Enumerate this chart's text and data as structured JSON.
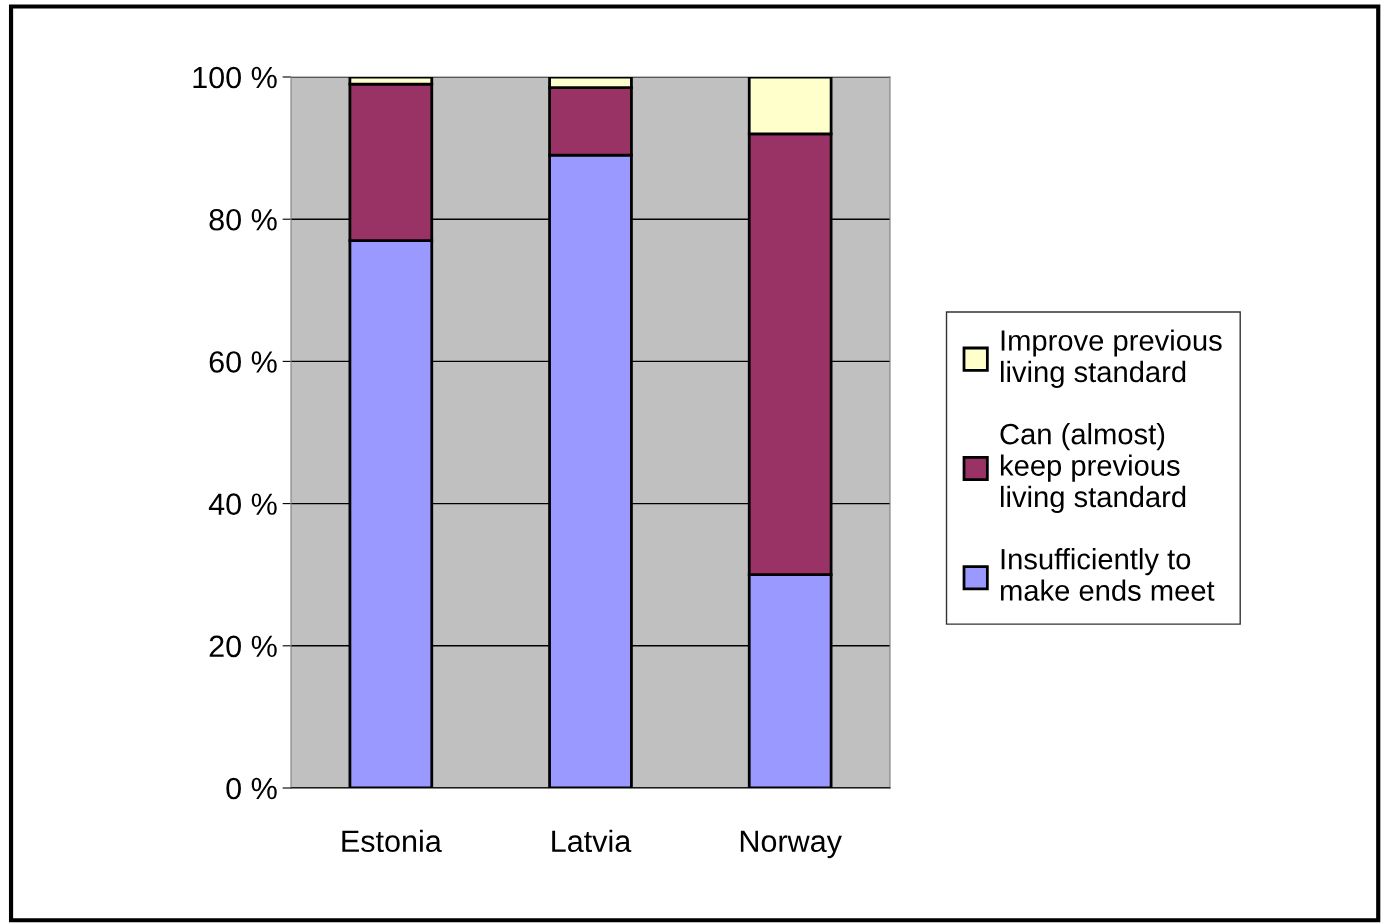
{
  "chart_data": {
    "type": "bar",
    "stacked": true,
    "categories": [
      "Estonia",
      "Latvia",
      "Norway"
    ],
    "series": [
      {
        "name": "Insufficiently to\nmake ends meet",
        "color": "#9999ff",
        "values": [
          77,
          89,
          30
        ]
      },
      {
        "name": "Can (almost)\nkeep previous\nliving standard",
        "color": "#993366",
        "values": [
          22,
          9.5,
          62
        ]
      },
      {
        "name": "Improve previous\nliving standard",
        "color": "#ffffcc",
        "values": [
          1,
          1.5,
          8
        ]
      }
    ],
    "ylim": [
      0,
      100
    ],
    "yticks": [
      {
        "value": 0,
        "label": "0 %"
      },
      {
        "value": 20,
        "label": "20 %"
      },
      {
        "value": 40,
        "label": "40 %"
      },
      {
        "value": 60,
        "label": "60 %"
      },
      {
        "value": 80,
        "label": "80 %"
      },
      {
        "value": 100,
        "label": "100 %"
      }
    ],
    "grid": "y",
    "legend": "right"
  }
}
